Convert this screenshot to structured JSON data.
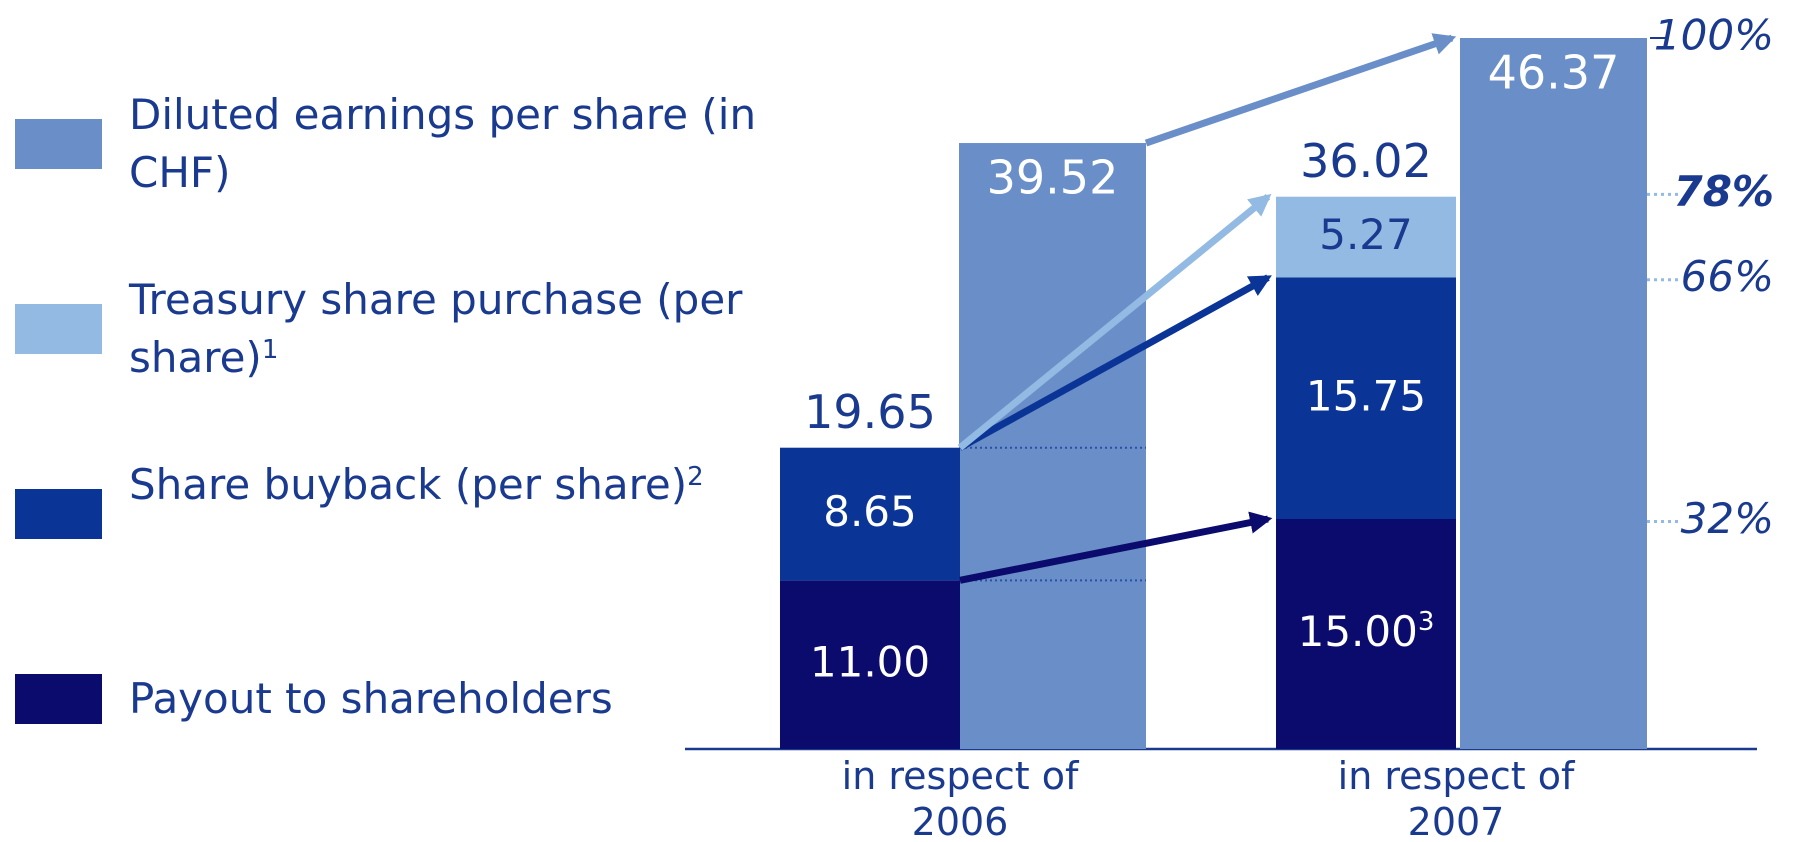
{
  "chart_data": {
    "type": "stacked_bar",
    "categories": [
      "in respect of 2006",
      "in respect of 2007"
    ],
    "eps_series": {
      "name": "Diluted earnings per share (in CHF)",
      "color": "#6a8fc8",
      "values": [
        39.52,
        46.37
      ],
      "value_labels": [
        "39.52",
        "46.37"
      ]
    },
    "series": [
      {
        "name": "Payout to shareholders",
        "color": "#0b0b6e",
        "values": [
          11.0,
          15.0
        ],
        "value_labels": [
          "11.00",
          "15.00"
        ],
        "value_label_notes": [
          null,
          "3"
        ]
      },
      {
        "name": "Share buyback (per share)",
        "note": "2",
        "color": "#0a3597",
        "values": [
          8.65,
          15.75
        ],
        "value_labels": [
          "8.65",
          "15.75"
        ]
      },
      {
        "name": "Treasury share purchase (per share)",
        "note": "1",
        "color": "#93bae2",
        "values": [
          null,
          5.27
        ],
        "value_labels": [
          null,
          "5.27"
        ]
      }
    ],
    "totals": [
      19.65,
      36.02
    ],
    "ylim": [
      0,
      46.37
    ],
    "y2lim": [
      0,
      100
    ],
    "y2ticks": [
      {
        "value": 100,
        "label": "100%"
      },
      {
        "value": 78,
        "label": "78%"
      },
      {
        "value": 66,
        "label": "66%"
      },
      {
        "value": 32,
        "label": "32%"
      }
    ]
  }
}
